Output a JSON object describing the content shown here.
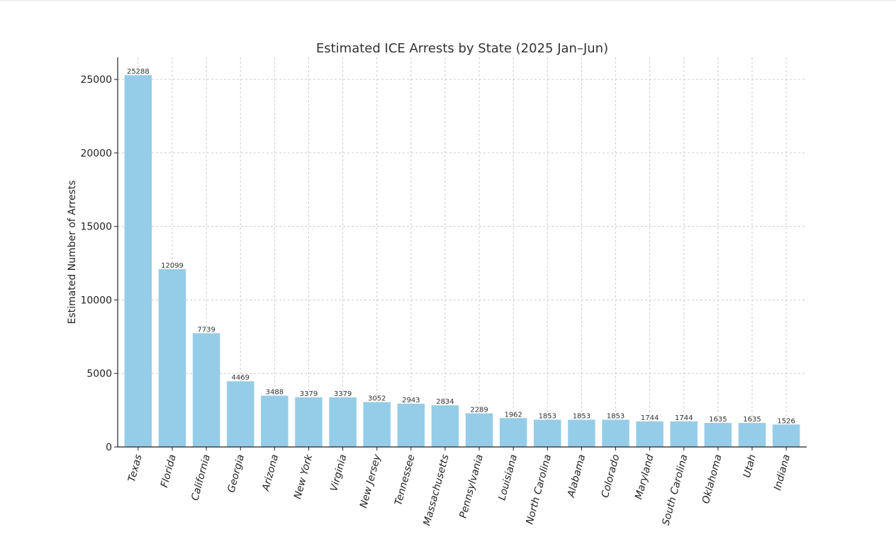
{
  "chart_data": {
    "type": "bar",
    "title": "Estimated ICE Arrests by State (2025 Jan–Jun)",
    "xlabel": "",
    "ylabel": "Estimated Number of Arrests",
    "ylim": [
      0,
      26500
    ],
    "yticks": [
      0,
      5000,
      10000,
      15000,
      20000,
      25000
    ],
    "grid": true,
    "bar_color": "#95cde8",
    "categories": [
      "Texas",
      "Florida",
      "California",
      "Georgia",
      "Arizona",
      "New York",
      "Virginia",
      "New Jersey",
      "Tennessee",
      "Massachusetts",
      "Pennsylvania",
      "Louisiana",
      "North Carolina",
      "Alabama",
      "Colorado",
      "Maryland",
      "South Carolina",
      "Oklahoma",
      "Utah",
      "Indiana"
    ],
    "values": [
      25288,
      12099,
      7739,
      4469,
      3488,
      3379,
      3379,
      3052,
      2943,
      2834,
      2289,
      1962,
      1853,
      1853,
      1853,
      1744,
      1744,
      1635,
      1635,
      1526
    ]
  }
}
